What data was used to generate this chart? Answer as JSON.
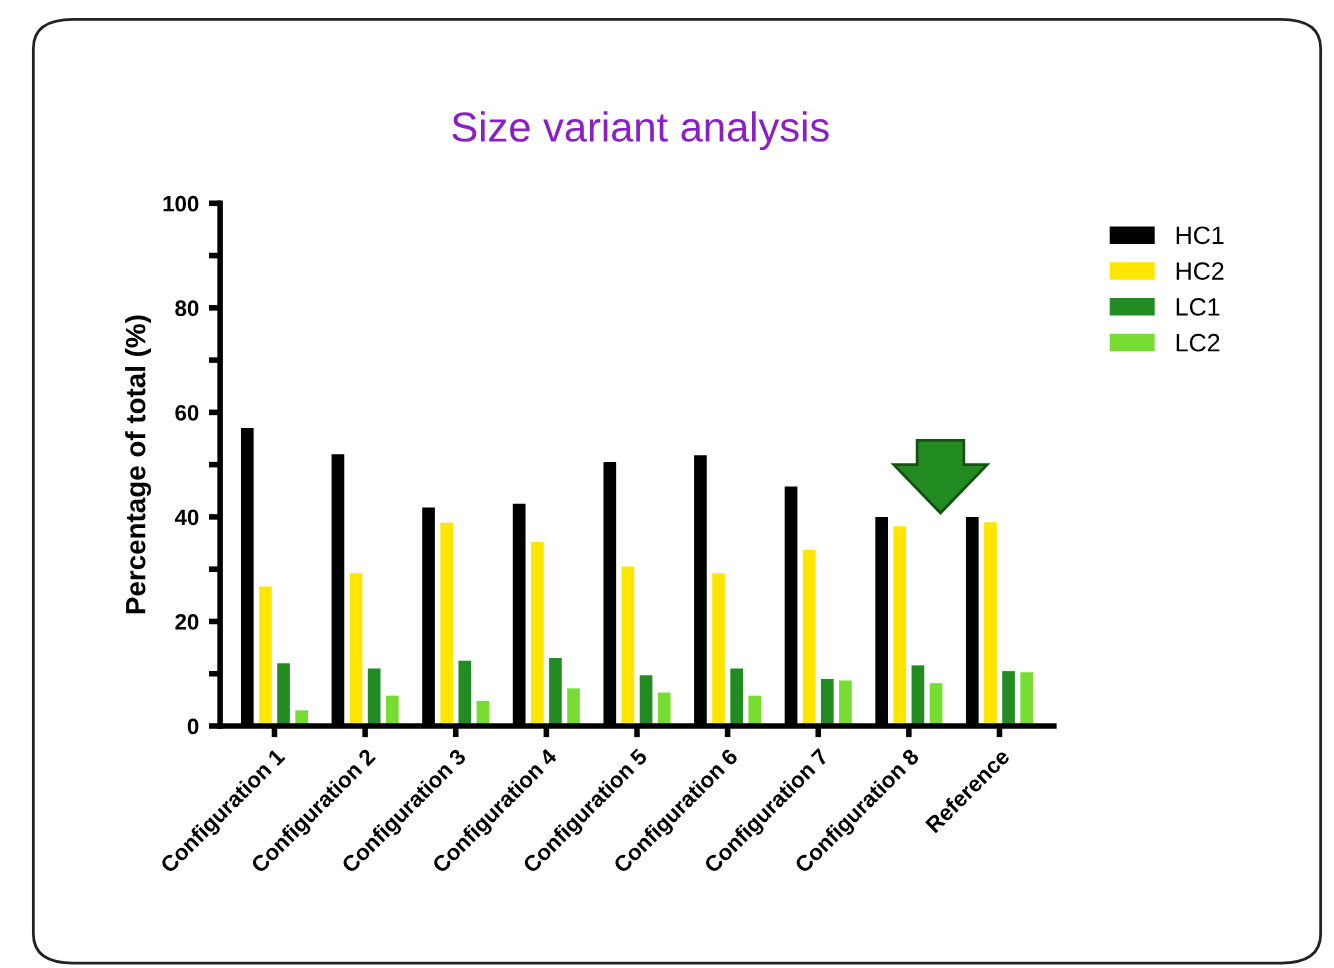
{
  "chart_data": {
    "type": "bar",
    "title": "Size variant analysis",
    "ylabel": "Percentage of total (%)",
    "categories": [
      "Configuration 1",
      "Configuration 2",
      "Configuration 3",
      "Configuration 4",
      "Configuration 5",
      "Configuration 6",
      "Configuration 7",
      "Configuration 8",
      "Reference"
    ],
    "series": [
      {
        "name": "HC1",
        "color": "#000000",
        "values": [
          57,
          52,
          41.8,
          42.5,
          50.5,
          51.8,
          45.8,
          40,
          40
        ]
      },
      {
        "name": "HC2",
        "color": "#ffe600",
        "values": [
          26.7,
          29.2,
          38.9,
          35.2,
          30.5,
          29.2,
          33.7,
          38.2,
          39
        ]
      },
      {
        "name": "LC1",
        "color": "#228b22",
        "values": [
          12,
          11,
          12.5,
          13,
          9.7,
          11,
          9,
          11.6,
          10.5
        ]
      },
      {
        "name": "LC2",
        "color": "#77dd33",
        "values": [
          3,
          5.8,
          4.8,
          7.2,
          6.4,
          5.8,
          8.7,
          8.2,
          10.3
        ]
      }
    ],
    "ylim": [
      0,
      100
    ],
    "yticks": [
      0,
      {
        "value": 10,
        "label": null
      },
      20,
      {
        "value": 30,
        "label": null
      },
      40,
      {
        "value": 50,
        "label": null
      },
      60,
      {
        "value": 70,
        "label": null
      },
      80,
      {
        "value": 90,
        "label": null
      },
      100
    ],
    "grid": false,
    "legend": "top right"
  }
}
